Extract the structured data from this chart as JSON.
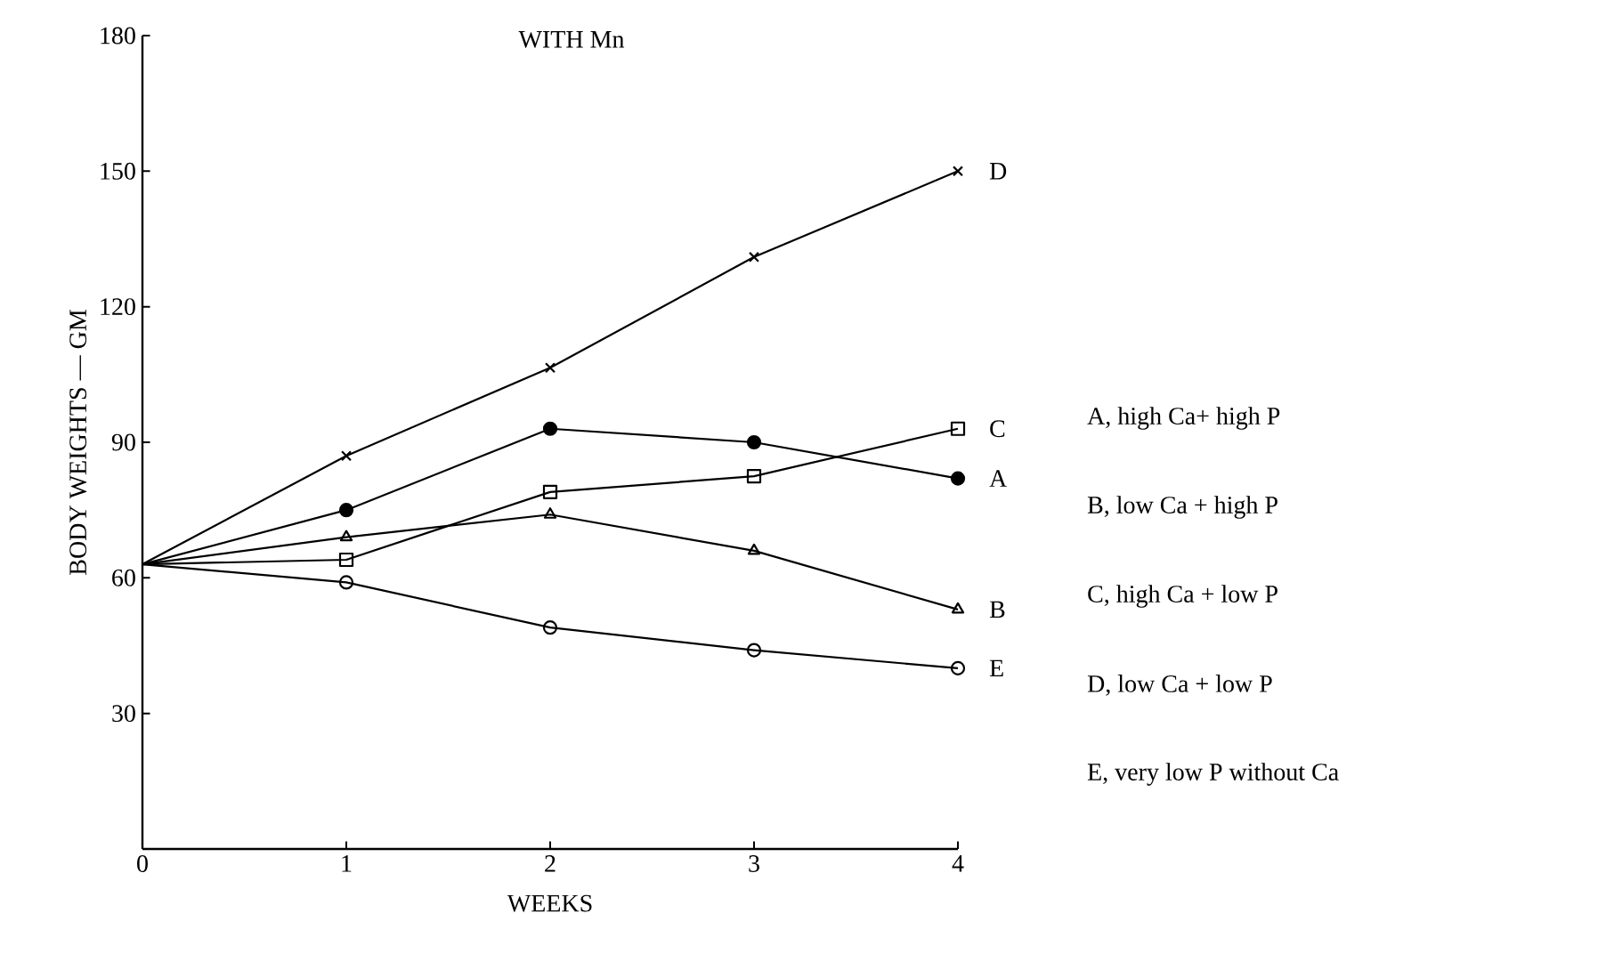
{
  "chart_data": {
    "type": "line",
    "title": "WITH Mn",
    "xlabel": "WEEKS",
    "ylabel": "BODY WEIGHTS — GM",
    "x": [
      0,
      1,
      2,
      3,
      4
    ],
    "xlim": [
      0,
      4
    ],
    "xticks": [
      0,
      1,
      2,
      3,
      4
    ],
    "ylim": [
      0,
      180
    ],
    "yticks": [
      30,
      60,
      90,
      120,
      150,
      180
    ],
    "grid": false,
    "legend": false,
    "series": [
      {
        "name": "A",
        "color": "#000000",
        "marker": "circle",
        "values": [
          63,
          75,
          93,
          90,
          82
        ]
      },
      {
        "name": "B",
        "color": "#000000",
        "marker": "triangle",
        "values": [
          63,
          69,
          74,
          66,
          53
        ]
      },
      {
        "name": "C",
        "color": "#000000",
        "marker": "square",
        "values": [
          63,
          64,
          79,
          82.5,
          93
        ]
      },
      {
        "name": "D",
        "color": "#000000",
        "marker": "cross",
        "values": [
          63,
          87,
          106.5,
          131,
          150
        ]
      },
      {
        "name": "E",
        "color": "#000000",
        "marker": "circle",
        "values": [
          63,
          59,
          49,
          44,
          40
        ]
      }
    ],
    "annotations": [
      "A, high Ca+ high P",
      "B, low Ca + high P",
      "C, high Ca + low P",
      "D, low Ca + low P",
      "E, very low P without Ca"
    ]
  }
}
